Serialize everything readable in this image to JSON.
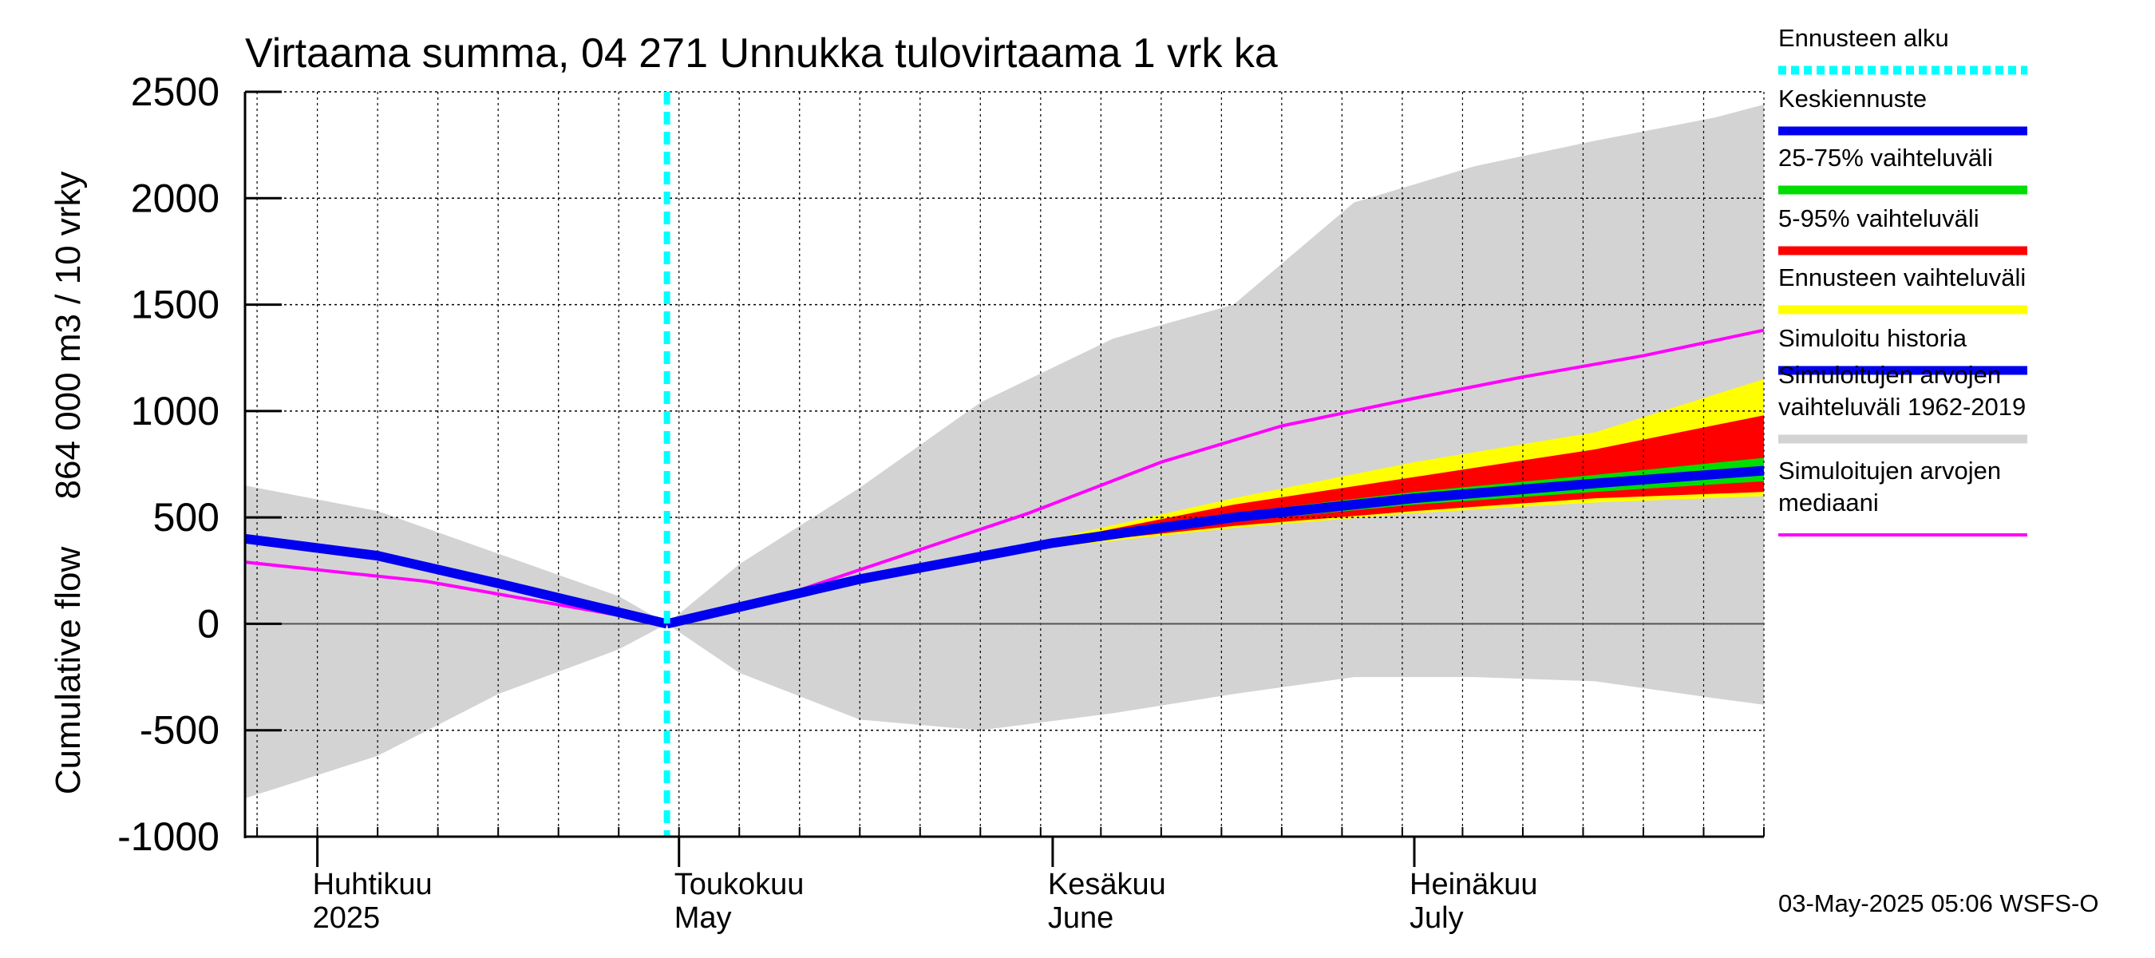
{
  "chart_data": {
    "type": "area",
    "title": "Virtaama summa, 04 271 Unnukka tulovirtaama 1 vrk ka",
    "ylabel_top": "864 000 m3 / 10 vrky",
    "ylabel_bottom": "Cumulative flow",
    "ylim": [
      -1000,
      2500
    ],
    "yticks": [
      "2500",
      "2000",
      "1500",
      "1000",
      "500",
      "0",
      "-500",
      "-1000"
    ],
    "ytick_values": [
      2500,
      2000,
      1500,
      1000,
      500,
      0,
      -500,
      -1000
    ],
    "xlim": [
      "2025-03-26",
      "2025-07-30"
    ],
    "months": [
      {
        "fi": "Huhtikuu",
        "en": "2025",
        "date": "2025-04-01"
      },
      {
        "fi": "Toukokuu",
        "en": "May",
        "date": "2025-05-01"
      },
      {
        "fi": "Kesäkuu",
        "en": "June",
        "date": "2025-06-01"
      },
      {
        "fi": "Heinäkuu",
        "en": "July",
        "date": "2025-07-01"
      }
    ],
    "forecast_start": "2025-04-30",
    "grid": true,
    "legend_position": "right",
    "series": [
      {
        "name": "Simuloitujen arvojen vaihteluväli 1962-2019",
        "color": "#d3d3d3",
        "type": "band",
        "x": [
          "2025-03-26",
          "2025-04-06",
          "2025-04-16",
          "2025-04-26",
          "2025-04-30",
          "2025-05-06",
          "2025-05-16",
          "2025-05-26",
          "2025-06-06",
          "2025-06-16",
          "2025-06-26",
          "2025-07-06",
          "2025-07-16",
          "2025-07-26",
          "2025-07-30"
        ],
        "upper": [
          650,
          530,
          330,
          130,
          0,
          280,
          640,
          1040,
          1340,
          1500,
          1980,
          2150,
          2270,
          2380,
          2440
        ],
        "lower": [
          -820,
          -620,
          -330,
          -120,
          0,
          -230,
          -450,
          -500,
          -420,
          -330,
          -250,
          -250,
          -270,
          -350,
          -380
        ]
      },
      {
        "name": "Ennusteen vaihteluväli",
        "color": "#ffff00",
        "type": "band",
        "x": [
          "2025-04-30",
          "2025-05-16",
          "2025-06-01",
          "2025-06-16",
          "2025-07-01",
          "2025-07-16",
          "2025-07-30"
        ],
        "upper": [
          0,
          220,
          400,
          590,
          760,
          900,
          1150
        ],
        "lower": [
          0,
          200,
          360,
          450,
          520,
          570,
          600
        ]
      },
      {
        "name": "5-95% vaihteluväli",
        "color": "#ff0000",
        "type": "band",
        "x": [
          "2025-04-30",
          "2025-05-16",
          "2025-06-01",
          "2025-06-16",
          "2025-07-01",
          "2025-07-16",
          "2025-07-30"
        ],
        "upper": [
          0,
          215,
          390,
          560,
          690,
          820,
          980
        ],
        "lower": [
          0,
          205,
          370,
          460,
          530,
          590,
          620
        ]
      },
      {
        "name": "25-75% vaihteluväli",
        "color": "#00dd00",
        "type": "band",
        "x": [
          "2025-04-30",
          "2025-05-16",
          "2025-06-01",
          "2025-06-16",
          "2025-07-01",
          "2025-07-16",
          "2025-07-30"
        ],
        "upper": [
          0,
          212,
          385,
          520,
          620,
          700,
          780
        ],
        "lower": [
          0,
          208,
          375,
          480,
          560,
          620,
          670
        ]
      },
      {
        "name": "Simuloitujen arvojen mediaani",
        "color": "#ff00ff",
        "type": "line",
        "x": [
          "2025-03-26",
          "2025-04-10",
          "2025-04-30",
          "2025-05-10",
          "2025-05-20",
          "2025-05-30",
          "2025-06-10",
          "2025-06-20",
          "2025-07-01",
          "2025-07-10",
          "2025-07-20",
          "2025-07-30"
        ],
        "values": [
          290,
          200,
          0,
          140,
          330,
          520,
          760,
          930,
          1060,
          1160,
          1260,
          1380
        ]
      },
      {
        "name": "Simuloitu historia",
        "color": "#0000ee",
        "type": "line",
        "x": [
          "2025-03-26",
          "2025-04-06",
          "2025-04-16",
          "2025-04-30"
        ],
        "values": [
          400,
          320,
          190,
          0
        ]
      },
      {
        "name": "Keskiennuste",
        "color": "#0000ee",
        "type": "line",
        "x": [
          "2025-04-30",
          "2025-05-16",
          "2025-06-01",
          "2025-06-16",
          "2025-07-01",
          "2025-07-16",
          "2025-07-30"
        ],
        "values": [
          0,
          210,
          380,
          500,
          590,
          660,
          720
        ]
      }
    ]
  },
  "legend": [
    {
      "label": "Ennusteen alku",
      "color": "#00ffff",
      "style": "dotted"
    },
    {
      "label": "Keskiennuste",
      "color": "#0000ee",
      "style": "solid"
    },
    {
      "label": "25-75% vaihteluväli",
      "color": "#00dd00",
      "style": "solid"
    },
    {
      "label": "5-95% vaihteluväli",
      "color": "#ff0000",
      "style": "solid"
    },
    {
      "label": "Ennusteen vaihteluväli",
      "color": "#ffff00",
      "style": "solid"
    },
    {
      "label": "Simuloitu historia",
      "color": "#0000ee",
      "style": "solid"
    },
    {
      "label": "Simuloitujen arvojen vaihteluväli 1962-2019",
      "color": "#d3d3d3",
      "style": "solid"
    },
    {
      "label": "Simuloitujen arvojen mediaani",
      "color": "#ff00ff",
      "style": "thin"
    }
  ],
  "footer": "03-May-2025 05:06 WSFS-O"
}
